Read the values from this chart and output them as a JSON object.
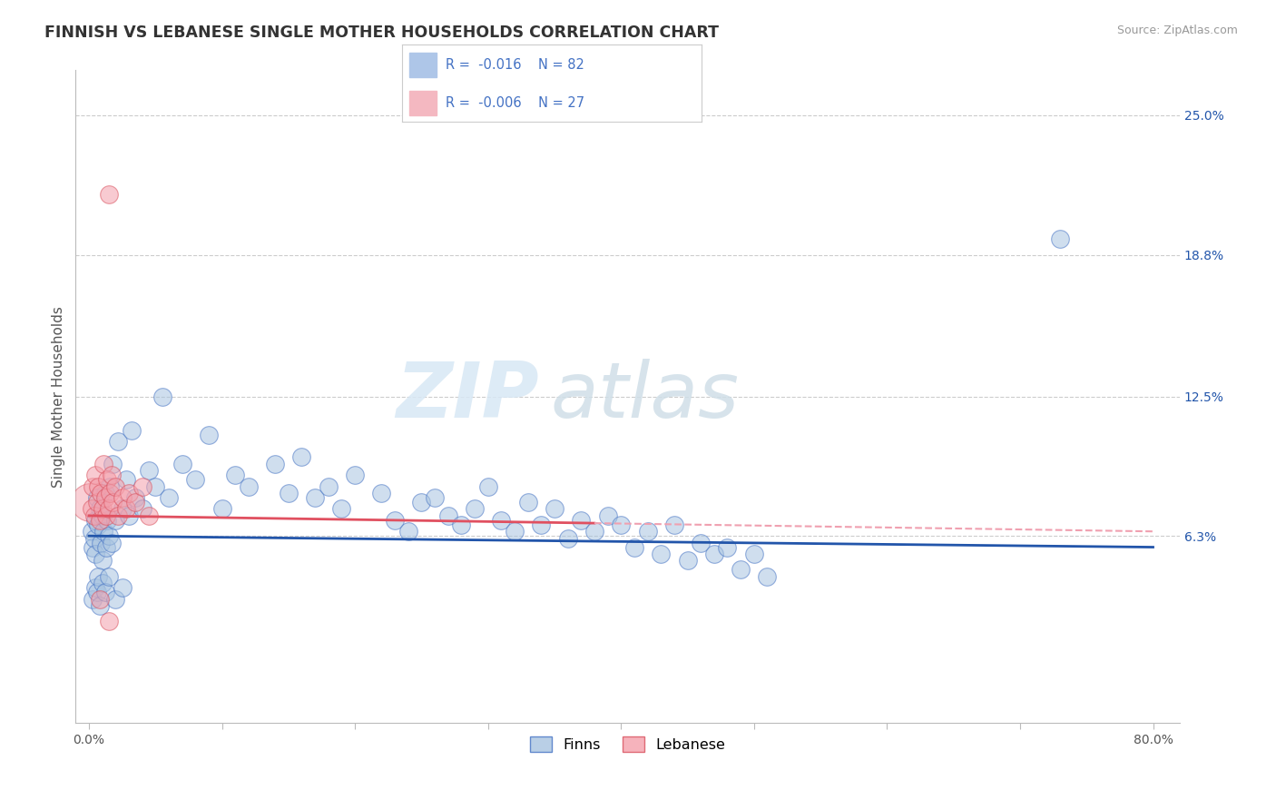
{
  "title": "FINNISH VS LEBANESE SINGLE MOTHER HOUSEHOLDS CORRELATION CHART",
  "source": "Source: ZipAtlas.com",
  "ylabel": "Single Mother Households",
  "watermark_zip": "ZIP",
  "watermark_atlas": "atlas",
  "xlim": [
    -1.0,
    82.0
  ],
  "ylim": [
    -2.0,
    27.0
  ],
  "xticks": [
    0.0,
    10.0,
    20.0,
    30.0,
    40.0,
    50.0,
    60.0,
    70.0,
    80.0
  ],
  "xtick_labels": [
    "0.0%",
    "",
    "",
    "",
    "",
    "",
    "",
    "",
    "80.0%"
  ],
  "ytick_labels_right": [
    "6.3%",
    "12.5%",
    "18.8%",
    "25.0%"
  ],
  "ytick_vals_right": [
    6.3,
    12.5,
    18.8,
    25.0
  ],
  "finns_color": "#a8c4e0",
  "lebanese_color": "#f4a0ac",
  "finns_edge": "#4472c4",
  "lebanese_edge": "#d94f5c",
  "trend_finns_color": "#2255aa",
  "trend_lebanese_color": "#e05060",
  "trend_leb_dash_color": "#f0a0b0",
  "background_color": "#ffffff",
  "grid_color": "#cccccc",
  "finns_data": [
    [
      0.2,
      6.5
    ],
    [
      0.3,
      5.8
    ],
    [
      0.4,
      6.2
    ],
    [
      0.5,
      7.0
    ],
    [
      0.5,
      5.5
    ],
    [
      0.6,
      8.0
    ],
    [
      0.7,
      6.8
    ],
    [
      0.8,
      7.5
    ],
    [
      0.9,
      6.0
    ],
    [
      1.0,
      7.2
    ],
    [
      1.0,
      5.2
    ],
    [
      1.1,
      6.5
    ],
    [
      1.2,
      8.2
    ],
    [
      1.3,
      5.8
    ],
    [
      1.4,
      7.0
    ],
    [
      1.5,
      6.3
    ],
    [
      1.6,
      8.5
    ],
    [
      1.7,
      6.0
    ],
    [
      1.8,
      9.5
    ],
    [
      2.0,
      7.0
    ],
    [
      2.2,
      10.5
    ],
    [
      2.5,
      7.5
    ],
    [
      2.8,
      8.8
    ],
    [
      3.0,
      7.2
    ],
    [
      3.2,
      11.0
    ],
    [
      3.5,
      8.0
    ],
    [
      4.0,
      7.5
    ],
    [
      4.5,
      9.2
    ],
    [
      5.0,
      8.5
    ],
    [
      5.5,
      12.5
    ],
    [
      6.0,
      8.0
    ],
    [
      7.0,
      9.5
    ],
    [
      8.0,
      8.8
    ],
    [
      9.0,
      10.8
    ],
    [
      10.0,
      7.5
    ],
    [
      11.0,
      9.0
    ],
    [
      12.0,
      8.5
    ],
    [
      14.0,
      9.5
    ],
    [
      15.0,
      8.2
    ],
    [
      16.0,
      9.8
    ],
    [
      17.0,
      8.0
    ],
    [
      18.0,
      8.5
    ],
    [
      19.0,
      7.5
    ],
    [
      20.0,
      9.0
    ],
    [
      22.0,
      8.2
    ],
    [
      23.0,
      7.0
    ],
    [
      24.0,
      6.5
    ],
    [
      25.0,
      7.8
    ],
    [
      26.0,
      8.0
    ],
    [
      27.0,
      7.2
    ],
    [
      28.0,
      6.8
    ],
    [
      29.0,
      7.5
    ],
    [
      30.0,
      8.5
    ],
    [
      31.0,
      7.0
    ],
    [
      32.0,
      6.5
    ],
    [
      33.0,
      7.8
    ],
    [
      34.0,
      6.8
    ],
    [
      35.0,
      7.5
    ],
    [
      36.0,
      6.2
    ],
    [
      37.0,
      7.0
    ],
    [
      38.0,
      6.5
    ],
    [
      39.0,
      7.2
    ],
    [
      40.0,
      6.8
    ],
    [
      41.0,
      5.8
    ],
    [
      42.0,
      6.5
    ],
    [
      43.0,
      5.5
    ],
    [
      44.0,
      6.8
    ],
    [
      45.0,
      5.2
    ],
    [
      46.0,
      6.0
    ],
    [
      47.0,
      5.5
    ],
    [
      48.0,
      5.8
    ],
    [
      49.0,
      4.8
    ],
    [
      50.0,
      5.5
    ],
    [
      51.0,
      4.5
    ],
    [
      0.3,
      3.5
    ],
    [
      0.5,
      4.0
    ],
    [
      0.6,
      3.8
    ],
    [
      0.7,
      4.5
    ],
    [
      0.8,
      3.2
    ],
    [
      1.0,
      4.2
    ],
    [
      1.2,
      3.8
    ],
    [
      1.5,
      4.5
    ],
    [
      2.0,
      3.5
    ],
    [
      2.5,
      4.0
    ],
    [
      73.0,
      19.5
    ]
  ],
  "lebanese_data": [
    [
      0.2,
      7.5
    ],
    [
      0.3,
      8.5
    ],
    [
      0.4,
      7.2
    ],
    [
      0.5,
      9.0
    ],
    [
      0.6,
      7.8
    ],
    [
      0.7,
      8.5
    ],
    [
      0.8,
      7.0
    ],
    [
      0.9,
      8.2
    ],
    [
      1.0,
      7.5
    ],
    [
      1.1,
      9.5
    ],
    [
      1.2,
      8.0
    ],
    [
      1.3,
      7.2
    ],
    [
      1.4,
      8.8
    ],
    [
      1.5,
      7.5
    ],
    [
      1.6,
      8.2
    ],
    [
      1.7,
      9.0
    ],
    [
      1.8,
      7.8
    ],
    [
      2.0,
      8.5
    ],
    [
      2.2,
      7.2
    ],
    [
      2.5,
      8.0
    ],
    [
      2.8,
      7.5
    ],
    [
      3.0,
      8.2
    ],
    [
      3.5,
      7.8
    ],
    [
      4.0,
      8.5
    ],
    [
      4.5,
      7.2
    ],
    [
      0.8,
      3.5
    ],
    [
      1.5,
      2.5
    ],
    [
      1.5,
      21.5
    ]
  ],
  "lebanese_big_dot": [
    0.05,
    7.8
  ],
  "title_fontsize": 12.5,
  "axis_label_fontsize": 11,
  "tick_fontsize": 10
}
